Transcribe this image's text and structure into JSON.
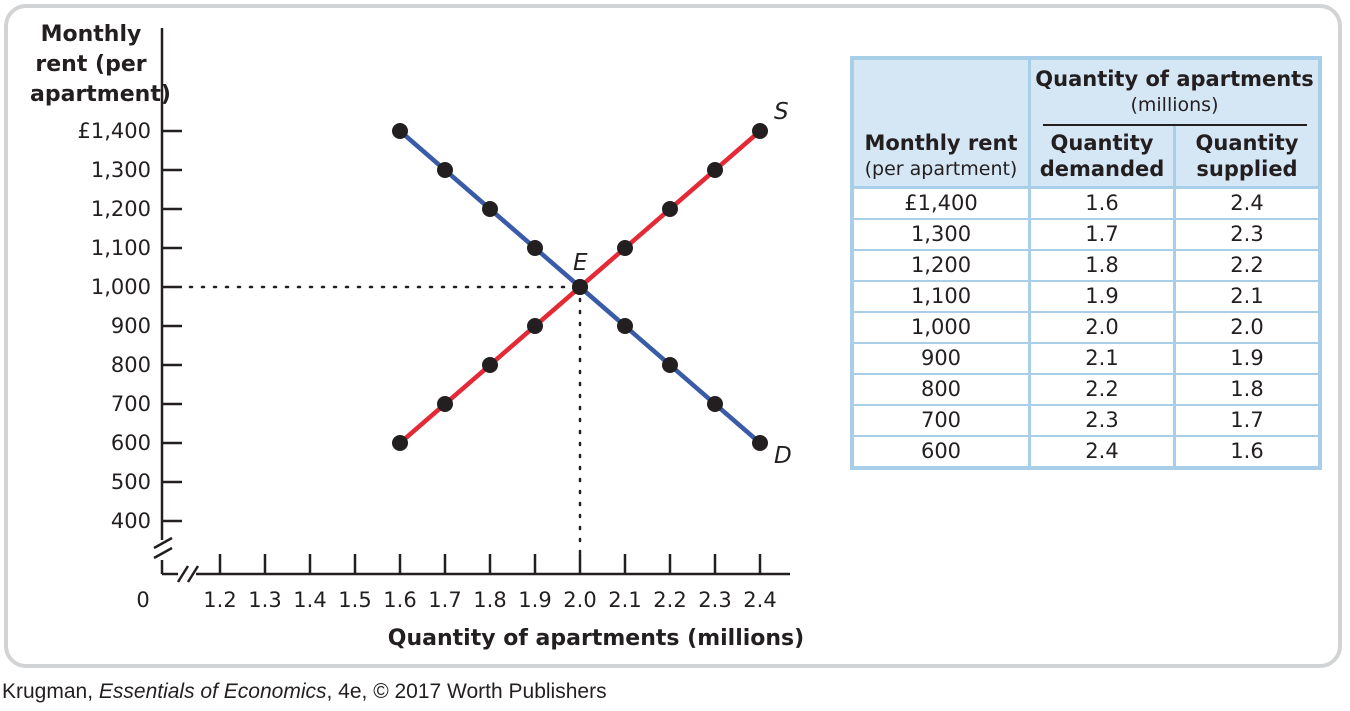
{
  "chart_data": {
    "type": "line",
    "ylabel_lines": [
      "Monthly",
      "rent (per",
      "apartment)"
    ],
    "xlabel": "Quantity of apartments (millions)",
    "origin_label": "0",
    "xlim": [
      1.2,
      2.4
    ],
    "ylim": [
      400,
      1400
    ],
    "x_ticks": [
      "1.2",
      "1.3",
      "1.4",
      "1.5",
      "1.6",
      "1.7",
      "1.8",
      "1.9",
      "2.0",
      "2.1",
      "2.2",
      "2.3",
      "2.4"
    ],
    "x_tick_values": [
      1.2,
      1.3,
      1.4,
      1.5,
      1.6,
      1.7,
      1.8,
      1.9,
      2.0,
      2.1,
      2.2,
      2.3,
      2.4
    ],
    "y_ticks": [
      "£1,400",
      "1,300",
      "1,200",
      "1,100",
      "1,000",
      "900",
      "800",
      "700",
      "600",
      "500",
      "400"
    ],
    "y_tick_values": [
      1400,
      1300,
      1200,
      1100,
      1000,
      900,
      800,
      700,
      600,
      500,
      400
    ],
    "series": [
      {
        "name": "D",
        "color": "#3a5ba7",
        "points": [
          [
            1.6,
            1400
          ],
          [
            1.7,
            1300
          ],
          [
            1.8,
            1200
          ],
          [
            1.9,
            1100
          ],
          [
            2.0,
            1000
          ],
          [
            2.1,
            900
          ],
          [
            2.2,
            800
          ],
          [
            2.3,
            700
          ],
          [
            2.4,
            600
          ]
        ]
      },
      {
        "name": "S",
        "color": "#e32a36",
        "points": [
          [
            1.6,
            600
          ],
          [
            1.7,
            700
          ],
          [
            1.8,
            800
          ],
          [
            1.9,
            900
          ],
          [
            2.0,
            1000
          ],
          [
            2.1,
            1100
          ],
          [
            2.2,
            1200
          ],
          [
            2.3,
            1300
          ],
          [
            2.4,
            1400
          ]
        ]
      }
    ],
    "equilibrium": {
      "label": "E",
      "x": 2.0,
      "y": 1000
    },
    "grid": false,
    "axis_break": true
  },
  "table": {
    "header_rent": [
      "Monthly rent",
      "(per apartment)"
    ],
    "header_group": [
      "Quantity of apartments",
      "(millions)"
    ],
    "header_demanded": [
      "Quantity",
      "demanded"
    ],
    "header_supplied": [
      "Quantity",
      "supplied"
    ],
    "rows": [
      [
        "£1,400",
        "1.6",
        "2.4"
      ],
      [
        "1,300",
        "1.7",
        "2.3"
      ],
      [
        "1,200",
        "1.8",
        "2.2"
      ],
      [
        "1,100",
        "1.9",
        "2.1"
      ],
      [
        "1,000",
        "2.0",
        "2.0"
      ],
      [
        "900",
        "2.1",
        "1.9"
      ],
      [
        "800",
        "2.2",
        "1.8"
      ],
      [
        "700",
        "2.3",
        "1.7"
      ],
      [
        "600",
        "2.4",
        "1.6"
      ]
    ]
  },
  "credit": {
    "author": "Krugman, ",
    "book": "Essentials of Economics",
    "rest": ", 4e, © 2017 Worth Publishers"
  },
  "colors": {
    "frame": "#d2d3d5",
    "table_border": "#a9cfe8",
    "table_header": "#d5e6f5",
    "axis": "#231f20"
  }
}
